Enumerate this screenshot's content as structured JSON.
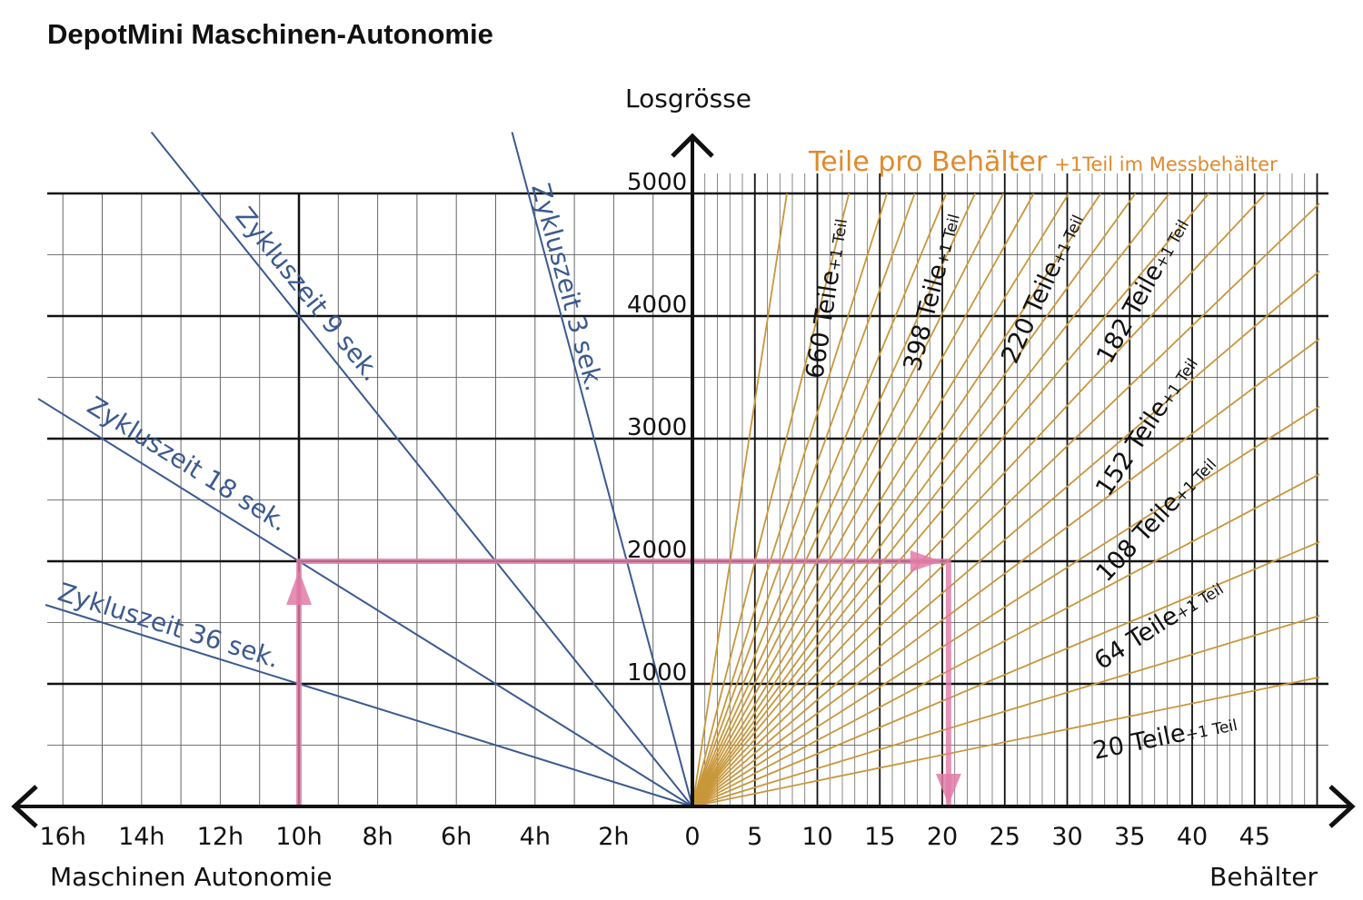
{
  "title": "DepotMini Maschinen-Autonomie",
  "colors": {
    "grid": "#111111",
    "fine_grid": "#555555",
    "cycle_lines": "#3b5a8f",
    "container_lines": "#c8973a",
    "orange_text": "#e08a2c",
    "pink": "#e07ba8"
  },
  "chart_data": {
    "type": "line",
    "title": "DepotMini Maschinen-Autonomie",
    "y_axis": {
      "label": "Losgrösse",
      "range": [
        0,
        5000
      ],
      "ticks": [
        1000,
        2000,
        3000,
        4000,
        5000
      ],
      "tick_labels": [
        "1000",
        "2000",
        "3000",
        "4000",
        "5000"
      ],
      "minor_step": 500
    },
    "left_axis": {
      "label": "Maschinen Autonomie",
      "unit": "h",
      "range": [
        0,
        17
      ],
      "ticks": [
        16,
        14,
        12,
        10,
        8,
        6,
        4,
        2
      ],
      "tick_labels": [
        "16h",
        "14h",
        "12h",
        "10h",
        "8h",
        "6h",
        "4h",
        "2h"
      ],
      "grid_step": 1
    },
    "right_axis": {
      "label": "Behälter",
      "range": [
        0,
        50
      ],
      "ticks": [
        0,
        5,
        10,
        15,
        20,
        25,
        30,
        35,
        40,
        45
      ],
      "tick_labels": [
        "0",
        "5",
        "10",
        "15",
        "20",
        "25",
        "30",
        "35",
        "40",
        "45"
      ],
      "grid_step": 1
    },
    "cycle_series": [
      {
        "name": "Zykluszeit 3 sek.",
        "cycle_s": 3,
        "label": "Zykluszeit  3 sek."
      },
      {
        "name": "Zykluszeit 9 sek.",
        "cycle_s": 9,
        "label": "Zykluszeit  9 sek."
      },
      {
        "name": "Zykluszeit 18 sek.",
        "cycle_s": 18,
        "label": "Zykluszeit  18 sek."
      },
      {
        "name": "Zykluszeit 36 sek.",
        "cycle_s": 36,
        "label": "Zykluszeit  36 sek."
      }
    ],
    "container_header": {
      "main": "Teile pro Behälter",
      "suffix": "+1Teil im Messbehälter"
    },
    "container_series": [
      {
        "parts": 20,
        "label": "20 Teile",
        "suffix": "+1 Teil"
      },
      {
        "parts": 64,
        "label": "64 Teile",
        "suffix": "+1 Teil"
      },
      {
        "parts": 108,
        "label": "108 Teile",
        "suffix": "+1 Teil"
      },
      {
        "parts": 152,
        "label": "152 Teile",
        "suffix": "+1 Teil"
      },
      {
        "parts": 182,
        "label": "182 Teile",
        "suffix": "+1 Teil"
      },
      {
        "parts": 220,
        "label": "220 Teile",
        "suffix": "+1 Teil"
      },
      {
        "parts": 398,
        "label": "398 Teile",
        "suffix": "+1 Teil"
      },
      {
        "parts": 660,
        "label": "660 Teile",
        "suffix": "+1 Teil"
      }
    ],
    "unlabeled_container_series": [
      30,
      42,
      53,
      75,
      86,
      97,
      120,
      130,
      140,
      165,
      200,
      245,
      280,
      320
    ],
    "example_path": {
      "hours": 10,
      "losgroesse": 2000,
      "cycle_s": 18,
      "behaelter": 20.5
    },
    "grid": true
  }
}
